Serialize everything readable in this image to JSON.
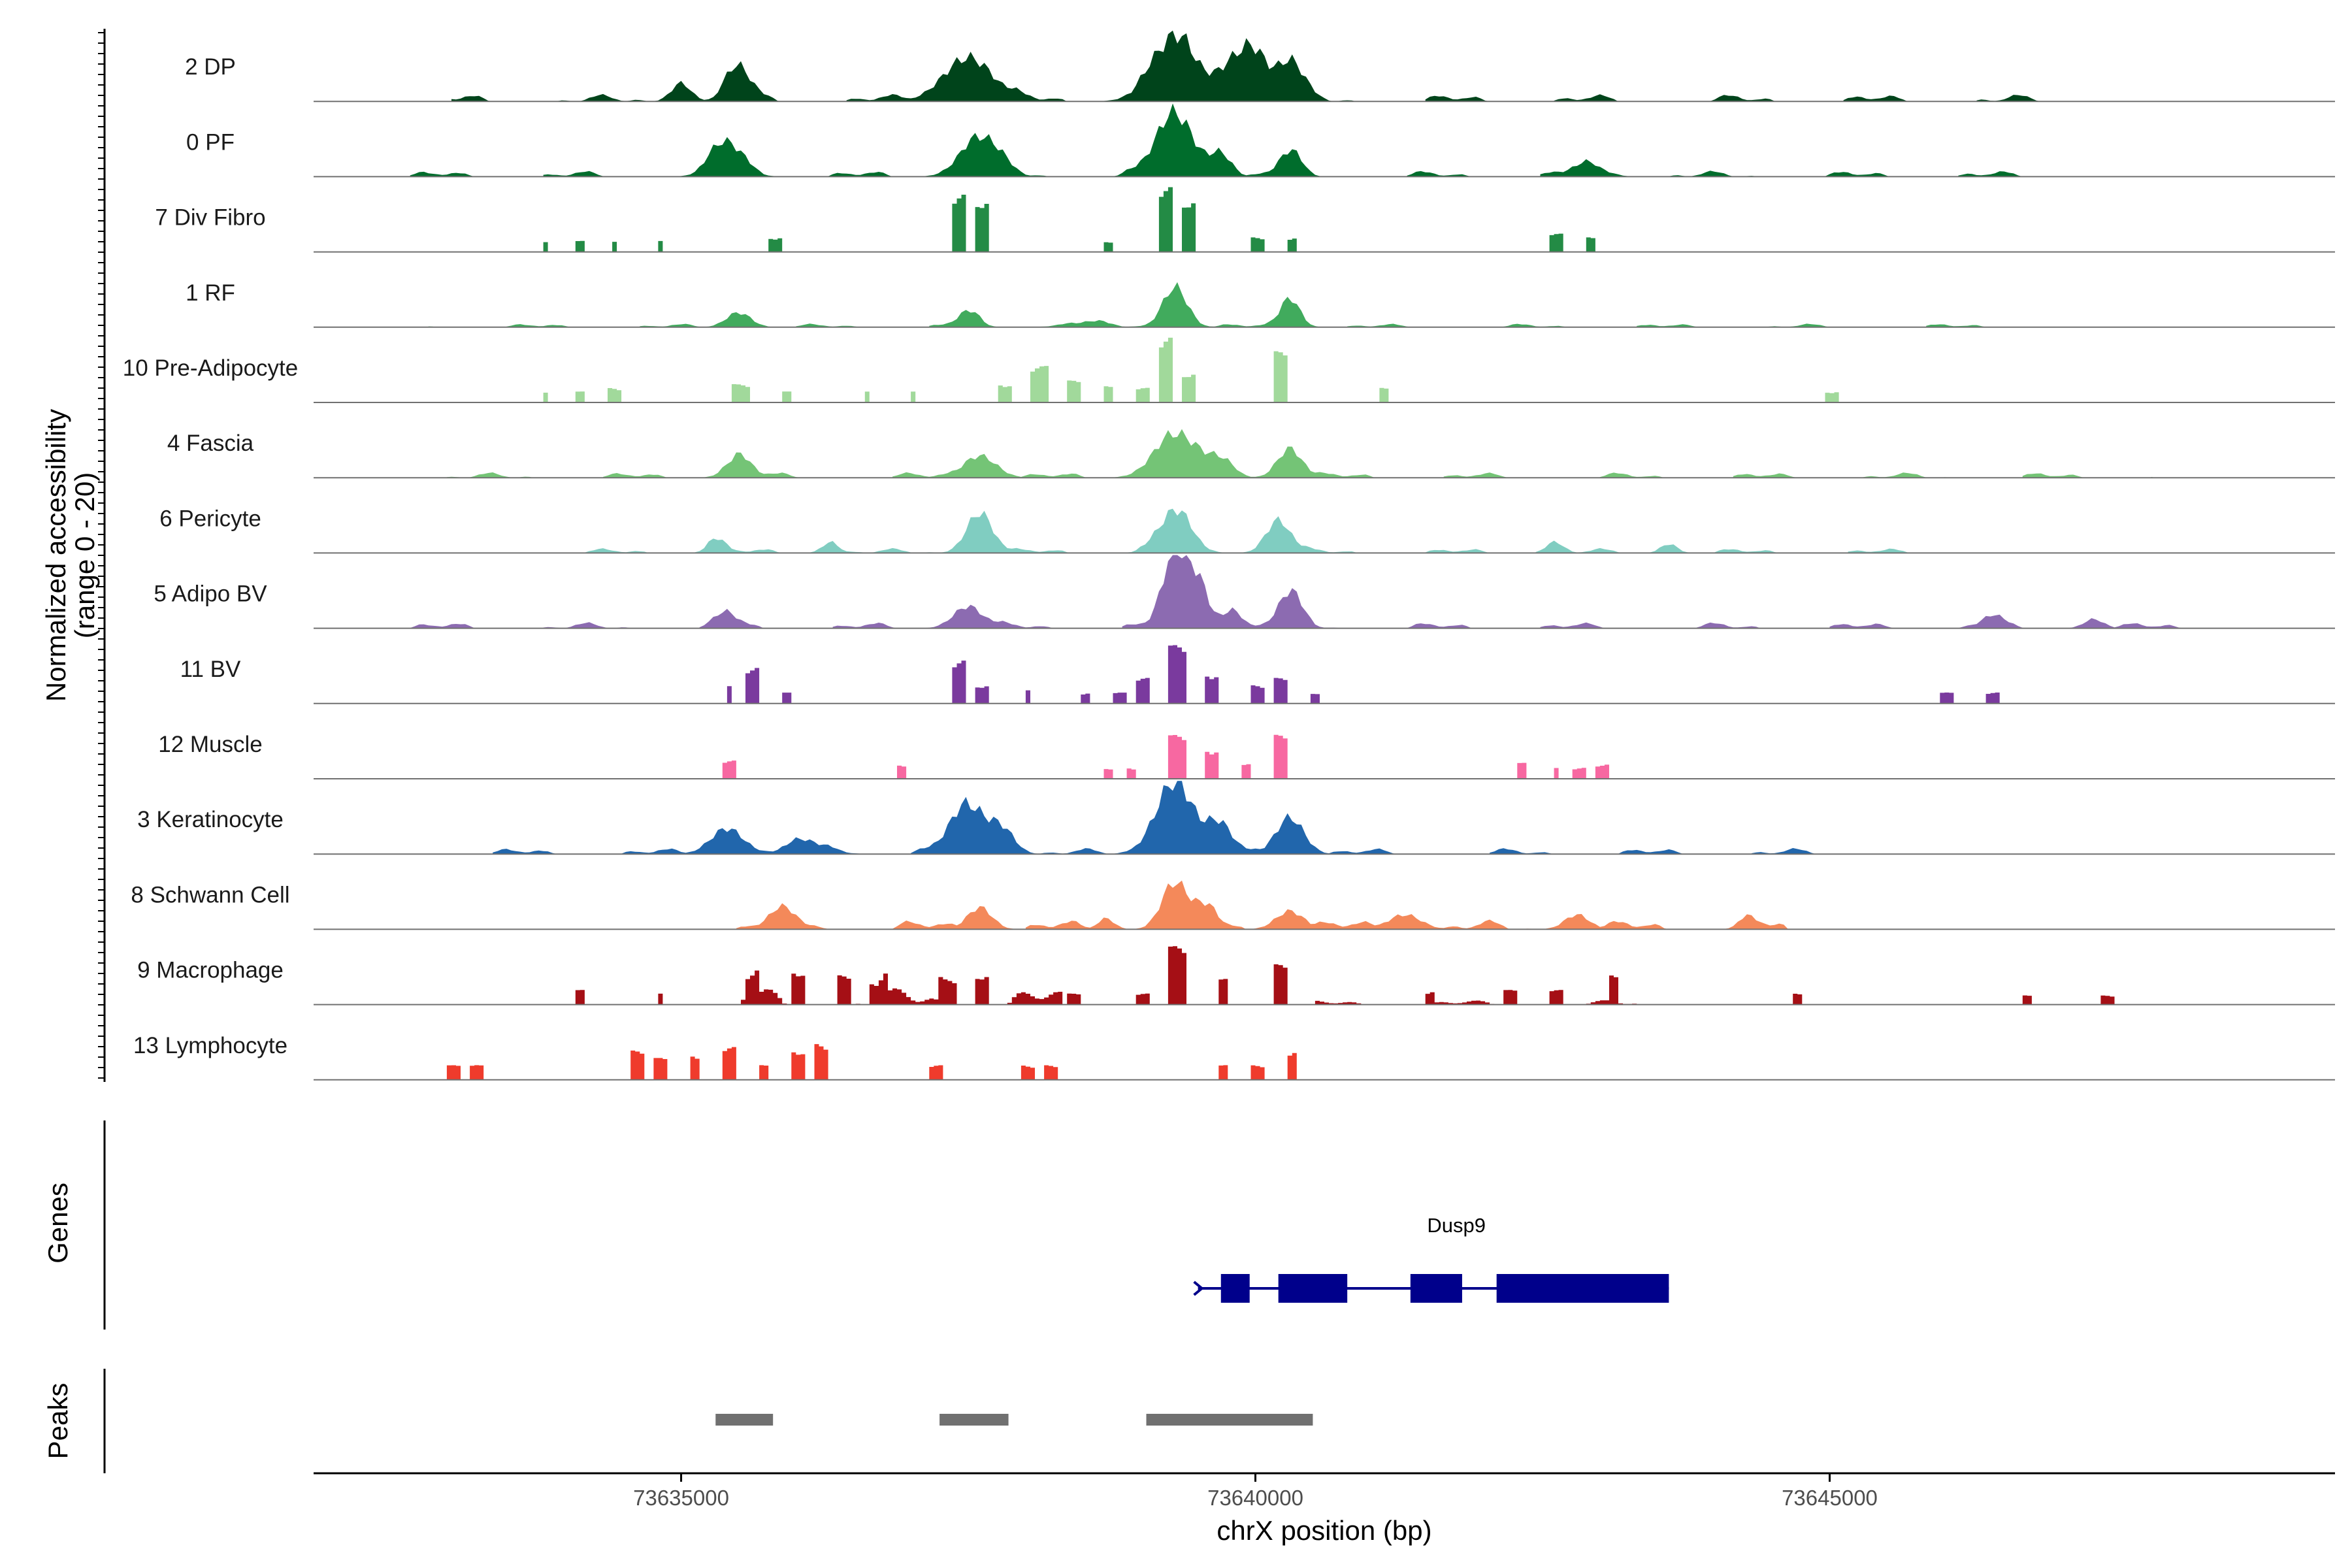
{
  "chart_data": {
    "type": "area",
    "region": {
      "chromosome": "chrX",
      "start": 73631800,
      "end": 73649400
    },
    "ylabel": "Normalized accessibility\n(range 0 - 20)",
    "xlabel": "chrX position (bp)",
    "yrange": [
      0,
      20
    ],
    "xticks": [
      73635000,
      73640000,
      73645000
    ],
    "xtick_labels": [
      "73635000",
      "73640000",
      "73645000"
    ],
    "grid": false,
    "tracks": [
      {
        "name": "2 DP",
        "color": "#00441b",
        "style": "smooth",
        "peaks": [
          [
            73635000,
            120,
            5
          ],
          [
            73635500,
            150,
            9
          ],
          [
            73637500,
            300,
            12
          ],
          [
            73639300,
            280,
            17
          ],
          [
            73639800,
            180,
            9
          ],
          [
            73640000,
            160,
            12
          ],
          [
            73640300,
            150,
            11
          ]
        ],
        "noise": [
          [
            73633000,
            73646800,
            1.2
          ]
        ]
      },
      {
        "name": "0 PF",
        "color": "#006d2c",
        "style": "smooth",
        "peaks": [
          [
            73635400,
            200,
            9
          ],
          [
            73637600,
            230,
            11
          ],
          [
            73639300,
            230,
            17
          ],
          [
            73639700,
            130,
            6
          ],
          [
            73640300,
            140,
            6
          ],
          [
            73642900,
            200,
            3
          ]
        ],
        "noise": [
          [
            73632500,
            73647200,
            1.0
          ]
        ]
      },
      {
        "name": "7 Div Fibro",
        "color": "#238b45",
        "style": "blocky",
        "peaks": [
          [
            73633800,
            50,
            3
          ],
          [
            73634100,
            40,
            3
          ],
          [
            73634400,
            50,
            3
          ],
          [
            73634800,
            50,
            3
          ],
          [
            73635800,
            60,
            4
          ],
          [
            73637400,
            110,
            16
          ],
          [
            73637600,
            110,
            14
          ],
          [
            73638700,
            50,
            3
          ],
          [
            73639200,
            110,
            18
          ],
          [
            73639400,
            110,
            14
          ],
          [
            73640000,
            90,
            4
          ],
          [
            73640300,
            80,
            4
          ],
          [
            73642600,
            60,
            5
          ],
          [
            73642900,
            60,
            4
          ]
        ],
        "noise": []
      },
      {
        "name": "1 RF",
        "color": "#41ab5d",
        "style": "smooth",
        "peaks": [
          [
            73635500,
            150,
            4
          ],
          [
            73637500,
            130,
            4
          ],
          [
            73639300,
            150,
            11
          ],
          [
            73640300,
            120,
            8
          ],
          [
            73638500,
            250,
            1.2
          ]
        ],
        "noise": [
          [
            73632800,
            73646500,
            0.6
          ]
        ]
      },
      {
        "name": "10 Pre-Adipocyte",
        "color": "#a1d99b",
        "style": "blocky",
        "peaks": [
          [
            73633800,
            40,
            3
          ],
          [
            73634100,
            40,
            3
          ],
          [
            73634400,
            60,
            4
          ],
          [
            73635500,
            120,
            5
          ],
          [
            73635900,
            60,
            3
          ],
          [
            73636600,
            50,
            3
          ],
          [
            73637000,
            50,
            3
          ],
          [
            73637800,
            70,
            5
          ],
          [
            73638100,
            120,
            10
          ],
          [
            73638400,
            80,
            6
          ],
          [
            73638700,
            60,
            5
          ],
          [
            73639000,
            60,
            4
          ],
          [
            73639200,
            90,
            18
          ],
          [
            73639400,
            80,
            8
          ],
          [
            73640200,
            100,
            14
          ],
          [
            73641100,
            40,
            4
          ],
          [
            73645000,
            60,
            3
          ]
        ],
        "noise": []
      },
      {
        "name": "4 Fascia",
        "color": "#74c476",
        "style": "smooth",
        "peaks": [
          [
            73635500,
            150,
            6
          ],
          [
            73637600,
            200,
            6
          ],
          [
            73639300,
            250,
            12
          ],
          [
            73639700,
            150,
            5
          ],
          [
            73640300,
            150,
            8
          ]
        ],
        "noise": [
          [
            73632800,
            73647800,
            0.9
          ]
        ]
      },
      {
        "name": "6 Pericyte",
        "color": "#80cdc1",
        "style": "smooth",
        "peaks": [
          [
            73635300,
            100,
            4
          ],
          [
            73636300,
            100,
            3
          ],
          [
            73637600,
            160,
            11
          ],
          [
            73639300,
            200,
            11
          ],
          [
            73640200,
            150,
            9
          ],
          [
            73642600,
            100,
            3
          ],
          [
            73643600,
            100,
            2.5
          ]
        ],
        "noise": [
          [
            73633500,
            73646000,
            0.8
          ]
        ]
      },
      {
        "name": "5 Adipo BV",
        "color": "#8c6bb1",
        "style": "smooth",
        "peaks": [
          [
            73635400,
            120,
            4
          ],
          [
            73637500,
            180,
            6
          ],
          [
            73639300,
            150,
            20
          ],
          [
            73639500,
            130,
            12
          ],
          [
            73639800,
            120,
            5
          ],
          [
            73640300,
            150,
            9
          ],
          [
            73646400,
            120,
            3
          ],
          [
            73647300,
            120,
            2.5
          ]
        ],
        "noise": [
          [
            73632500,
            73648500,
            1.0
          ]
        ]
      },
      {
        "name": "11 BV",
        "color": "#7a3a9e",
        "style": "blocky",
        "peaks": [
          [
            73635400,
            50,
            5
          ],
          [
            73635600,
            60,
            10
          ],
          [
            73635900,
            50,
            3
          ],
          [
            73637400,
            70,
            12
          ],
          [
            73637600,
            60,
            5
          ],
          [
            73638000,
            50,
            4
          ],
          [
            73638500,
            50,
            3
          ],
          [
            73638800,
            70,
            3
          ],
          [
            73639000,
            80,
            7
          ],
          [
            73639300,
            120,
            16
          ],
          [
            73639600,
            100,
            8
          ],
          [
            73640000,
            60,
            5
          ],
          [
            73640200,
            60,
            7
          ],
          [
            73640500,
            50,
            3
          ],
          [
            73646000,
            60,
            3
          ],
          [
            73646400,
            60,
            3
          ]
        ],
        "noise": []
      },
      {
        "name": "12 Muscle",
        "color": "#f768a1",
        "style": "blocky",
        "peaks": [
          [
            73635400,
            60,
            5
          ],
          [
            73636900,
            60,
            4
          ],
          [
            73638700,
            60,
            3
          ],
          [
            73638900,
            60,
            3
          ],
          [
            73639300,
            110,
            12
          ],
          [
            73639600,
            80,
            8
          ],
          [
            73639900,
            60,
            4
          ],
          [
            73640200,
            100,
            12
          ],
          [
            73642300,
            70,
            5
          ],
          [
            73642600,
            50,
            3
          ],
          [
            73642800,
            60,
            3
          ],
          [
            73643000,
            60,
            4
          ]
        ],
        "noise": []
      },
      {
        "name": "3 Keratinocyte",
        "color": "#2166ac",
        "style": "smooth",
        "peaks": [
          [
            73635400,
            200,
            7
          ],
          [
            73636100,
            250,
            3
          ],
          [
            73637500,
            220,
            13
          ],
          [
            73637800,
            150,
            6
          ],
          [
            73639300,
            230,
            20
          ],
          [
            73639700,
            150,
            7
          ],
          [
            73640300,
            170,
            10
          ]
        ],
        "noise": [
          [
            73633100,
            73645500,
            1.0
          ]
        ]
      },
      {
        "name": "8 Schwann Cell",
        "color": "#f4895a",
        "style": "smooth",
        "peaks": [
          [
            73635900,
            200,
            4
          ],
          [
            73637600,
            150,
            6
          ],
          [
            73638700,
            100,
            3
          ],
          [
            73639300,
            160,
            13
          ],
          [
            73639600,
            120,
            5
          ],
          [
            73640300,
            170,
            5
          ],
          [
            73641300,
            200,
            4
          ],
          [
            73642800,
            150,
            4
          ],
          [
            73644300,
            120,
            3
          ]
        ],
        "noise": [
          [
            73635100,
            73643600,
            1.6
          ],
          [
            73644200,
            73644600,
            1.0
          ]
        ]
      },
      {
        "name": "9 Macrophage",
        "color": "#a50f15",
        "style": "blocky",
        "peaks": [
          [
            73634100,
            60,
            4
          ],
          [
            73634800,
            50,
            3
          ],
          [
            73635600,
            80,
            7
          ],
          [
            73636000,
            90,
            9
          ],
          [
            73636400,
            80,
            8
          ],
          [
            73636700,
            90,
            6
          ],
          [
            73637300,
            100,
            7
          ],
          [
            73637600,
            90,
            8
          ],
          [
            73638400,
            70,
            3
          ],
          [
            73639000,
            60,
            3
          ],
          [
            73639300,
            120,
            16
          ],
          [
            73639700,
            80,
            7
          ],
          [
            73640200,
            100,
            11
          ],
          [
            73641500,
            60,
            3
          ],
          [
            73642200,
            60,
            4
          ],
          [
            73642600,
            70,
            4
          ],
          [
            73643100,
            80,
            7
          ],
          [
            73644700,
            60,
            3
          ],
          [
            73646700,
            60,
            2.5
          ],
          [
            73647400,
            80,
            2.5
          ]
        ],
        "noise": [
          [
            73635500,
            73638300,
            3.0
          ],
          [
            73640500,
            73643300,
            0.8
          ]
        ]
      },
      {
        "name": "13 Lymphocyte",
        "color": "#ef3b2c",
        "style": "blocky",
        "peaks": [
          [
            73633000,
            60,
            4
          ],
          [
            73633200,
            60,
            4
          ],
          [
            73634600,
            100,
            8
          ],
          [
            73634800,
            60,
            6
          ],
          [
            73635100,
            80,
            7
          ],
          [
            73635400,
            60,
            9
          ],
          [
            73635700,
            70,
            4
          ],
          [
            73636000,
            90,
            8
          ],
          [
            73636200,
            80,
            10
          ],
          [
            73637200,
            60,
            4
          ],
          [
            73638000,
            60,
            4
          ],
          [
            73638200,
            60,
            4
          ],
          [
            73639700,
            60,
            4
          ],
          [
            73640000,
            60,
            4
          ],
          [
            73640300,
            70,
            8
          ]
        ],
        "noise": []
      }
    ],
    "genes": [
      {
        "name": "Dusp9",
        "strand": "+",
        "start": 73639500,
        "end": 73643600,
        "exons": [
          [
            73639700,
            73639950
          ],
          [
            73640200,
            73640800
          ],
          [
            73641350,
            73641800
          ],
          [
            73642100,
            73643600
          ]
        ]
      }
    ],
    "peak_regions": [
      [
        73635300,
        73635800
      ],
      [
        73637250,
        73637850
      ],
      [
        73639050,
        73640500
      ]
    ]
  },
  "panels": {
    "genes_title": "Genes",
    "peaks_title": "Peaks"
  },
  "colors": {
    "gene": "#00008b",
    "peak_bar": "#707070",
    "baseline": "#707070",
    "axis": "#000000"
  }
}
